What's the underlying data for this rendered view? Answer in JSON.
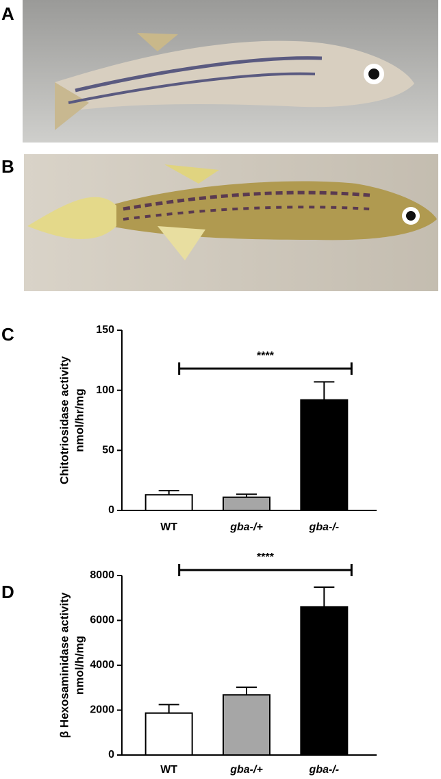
{
  "photos": [
    {
      "label": "A"
    },
    {
      "label": "B"
    }
  ],
  "chart_data": [
    {
      "type": "bar",
      "panel": "C",
      "ylabel": [
        "Chitotriosidase activity",
        "nmol/hr/mg"
      ],
      "categories": [
        "WT",
        "gba-/+",
        "gba-/-"
      ],
      "values": [
        13,
        11,
        92
      ],
      "errors": [
        3.5,
        2.5,
        15
      ],
      "colors": [
        "#ffffff",
        "#a6a6a6",
        "#000000"
      ],
      "ylim": [
        0,
        150
      ],
      "yticks": [
        0,
        50,
        100,
        150
      ],
      "annotation": "****"
    },
    {
      "type": "bar",
      "panel": "D",
      "ylabel": [
        "β Hexosaminidase activity",
        "nmol/h/mg"
      ],
      "categories": [
        "WT",
        "gba-/+",
        "gba-/-"
      ],
      "values": [
        1870,
        2680,
        6600
      ],
      "errors": [
        380,
        340,
        880
      ],
      "colors": [
        "#ffffff",
        "#a6a6a6",
        "#000000"
      ],
      "ylim": [
        0,
        8000
      ],
      "yticks": [
        0,
        2000,
        4000,
        6000,
        8000
      ],
      "annotation": "****"
    }
  ]
}
